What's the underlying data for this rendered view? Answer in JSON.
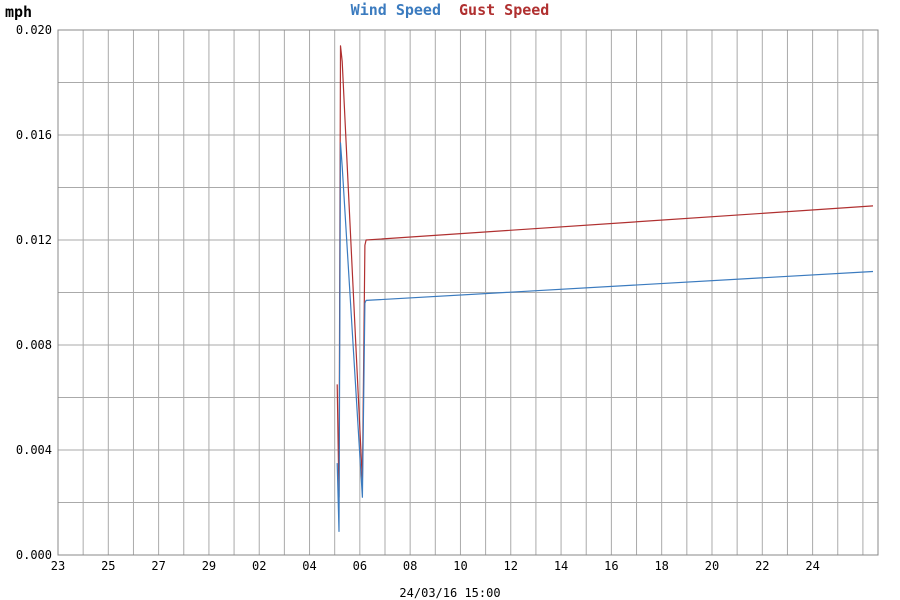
{
  "chart_data": {
    "type": "line",
    "ylabel": "mph",
    "ylim": [
      0,
      0.02
    ],
    "yticks": [
      "0.000",
      "0.004",
      "0.008",
      "0.012",
      "0.016",
      "0.020"
    ],
    "xlim": [
      23,
      55.6
    ],
    "xticks": [
      {
        "x": 23,
        "label": "23"
      },
      {
        "x": 25,
        "label": "25"
      },
      {
        "x": 27,
        "label": "27"
      },
      {
        "x": 29,
        "label": "29"
      },
      {
        "x": 31,
        "label": "02"
      },
      {
        "x": 33,
        "label": "04"
      },
      {
        "x": 35,
        "label": "06"
      },
      {
        "x": 37,
        "label": "08"
      },
      {
        "x": 39,
        "label": "10"
      },
      {
        "x": 41,
        "label": "12"
      },
      {
        "x": 43,
        "label": "14"
      },
      {
        "x": 45,
        "label": "16"
      },
      {
        "x": 47,
        "label": "18"
      },
      {
        "x": 49,
        "label": "20"
      },
      {
        "x": 51,
        "label": "22"
      },
      {
        "x": 53,
        "label": "24"
      }
    ],
    "grid": true,
    "legend_position": "top-center",
    "timestamp": "24/03/16 15:00",
    "series": [
      {
        "name": "Wind Speed",
        "color": "#3b7bbf",
        "x": [
          34.1,
          34.17,
          34.23,
          34.3,
          35.1,
          35.2,
          35.25,
          55.4
        ],
        "y": [
          0.0035,
          0.0009,
          0.0157,
          0.0148,
          0.0022,
          0.0096,
          0.0097,
          0.0108
        ]
      },
      {
        "name": "Gust Speed",
        "color": "#b03030",
        "x": [
          34.1,
          34.17,
          34.23,
          34.3,
          35.1,
          35.2,
          35.25,
          55.4
        ],
        "y": [
          0.0065,
          0.0022,
          0.0194,
          0.0188,
          0.0028,
          0.0118,
          0.012,
          0.0133
        ]
      }
    ]
  }
}
